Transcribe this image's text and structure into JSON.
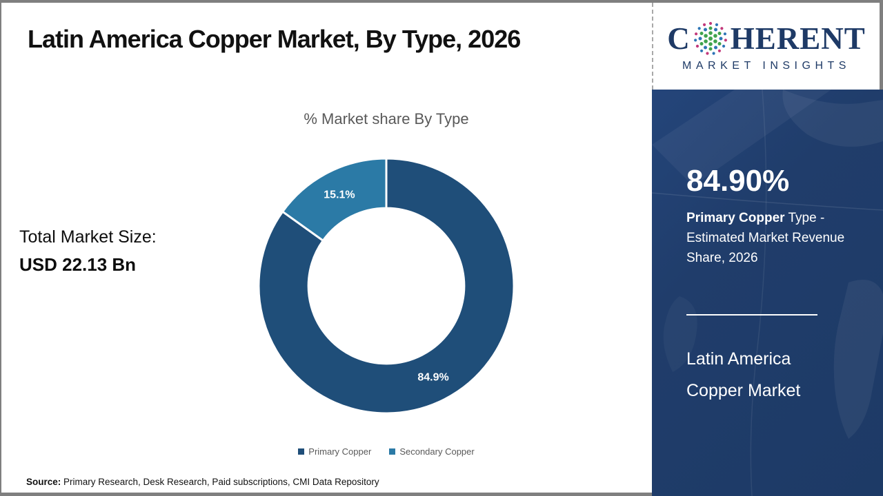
{
  "header": {
    "title": "Latin America Copper Market, By Type, 2026"
  },
  "logo": {
    "brand_c": "C",
    "brand_rest": "HERENT",
    "brand_sub": "MARKET INSIGHTS",
    "navy": "#1e3a66",
    "globe_colors": {
      "green": "#3fa34d",
      "blue": "#2e75b6",
      "crimson": "#c2397b"
    }
  },
  "chart_data": {
    "type": "pie",
    "subtype": "donut",
    "title": "% Market share By Type",
    "categories": [
      "Primary Copper",
      "Secondary Copper"
    ],
    "values": [
      84.9,
      15.1
    ],
    "labels": [
      "84.9%",
      "15.1%"
    ],
    "colors": [
      "#1F4E79",
      "#2B7AA6"
    ],
    "donut_hole_ratio": 0.61,
    "start_angle_deg": 0,
    "direction": "clockwise",
    "legend_position": "bottom"
  },
  "left_panel": {
    "total_label": "Total Market Size:",
    "total_value": "USD 22.13 Bn"
  },
  "sidebar": {
    "background_color": "#203D6B",
    "stat_value": "84.90%",
    "stat_desc_bold": "Primary Copper",
    "stat_desc_rest": " Type - Estimated Market Revenue Share, 2026",
    "market_name_line1": "Latin America",
    "market_name_line2": "Copper Market"
  },
  "footer": {
    "source_label": "Source:",
    "source_text": " Primary Research, Desk Research, Paid subscriptions, CMI Data Repository"
  }
}
